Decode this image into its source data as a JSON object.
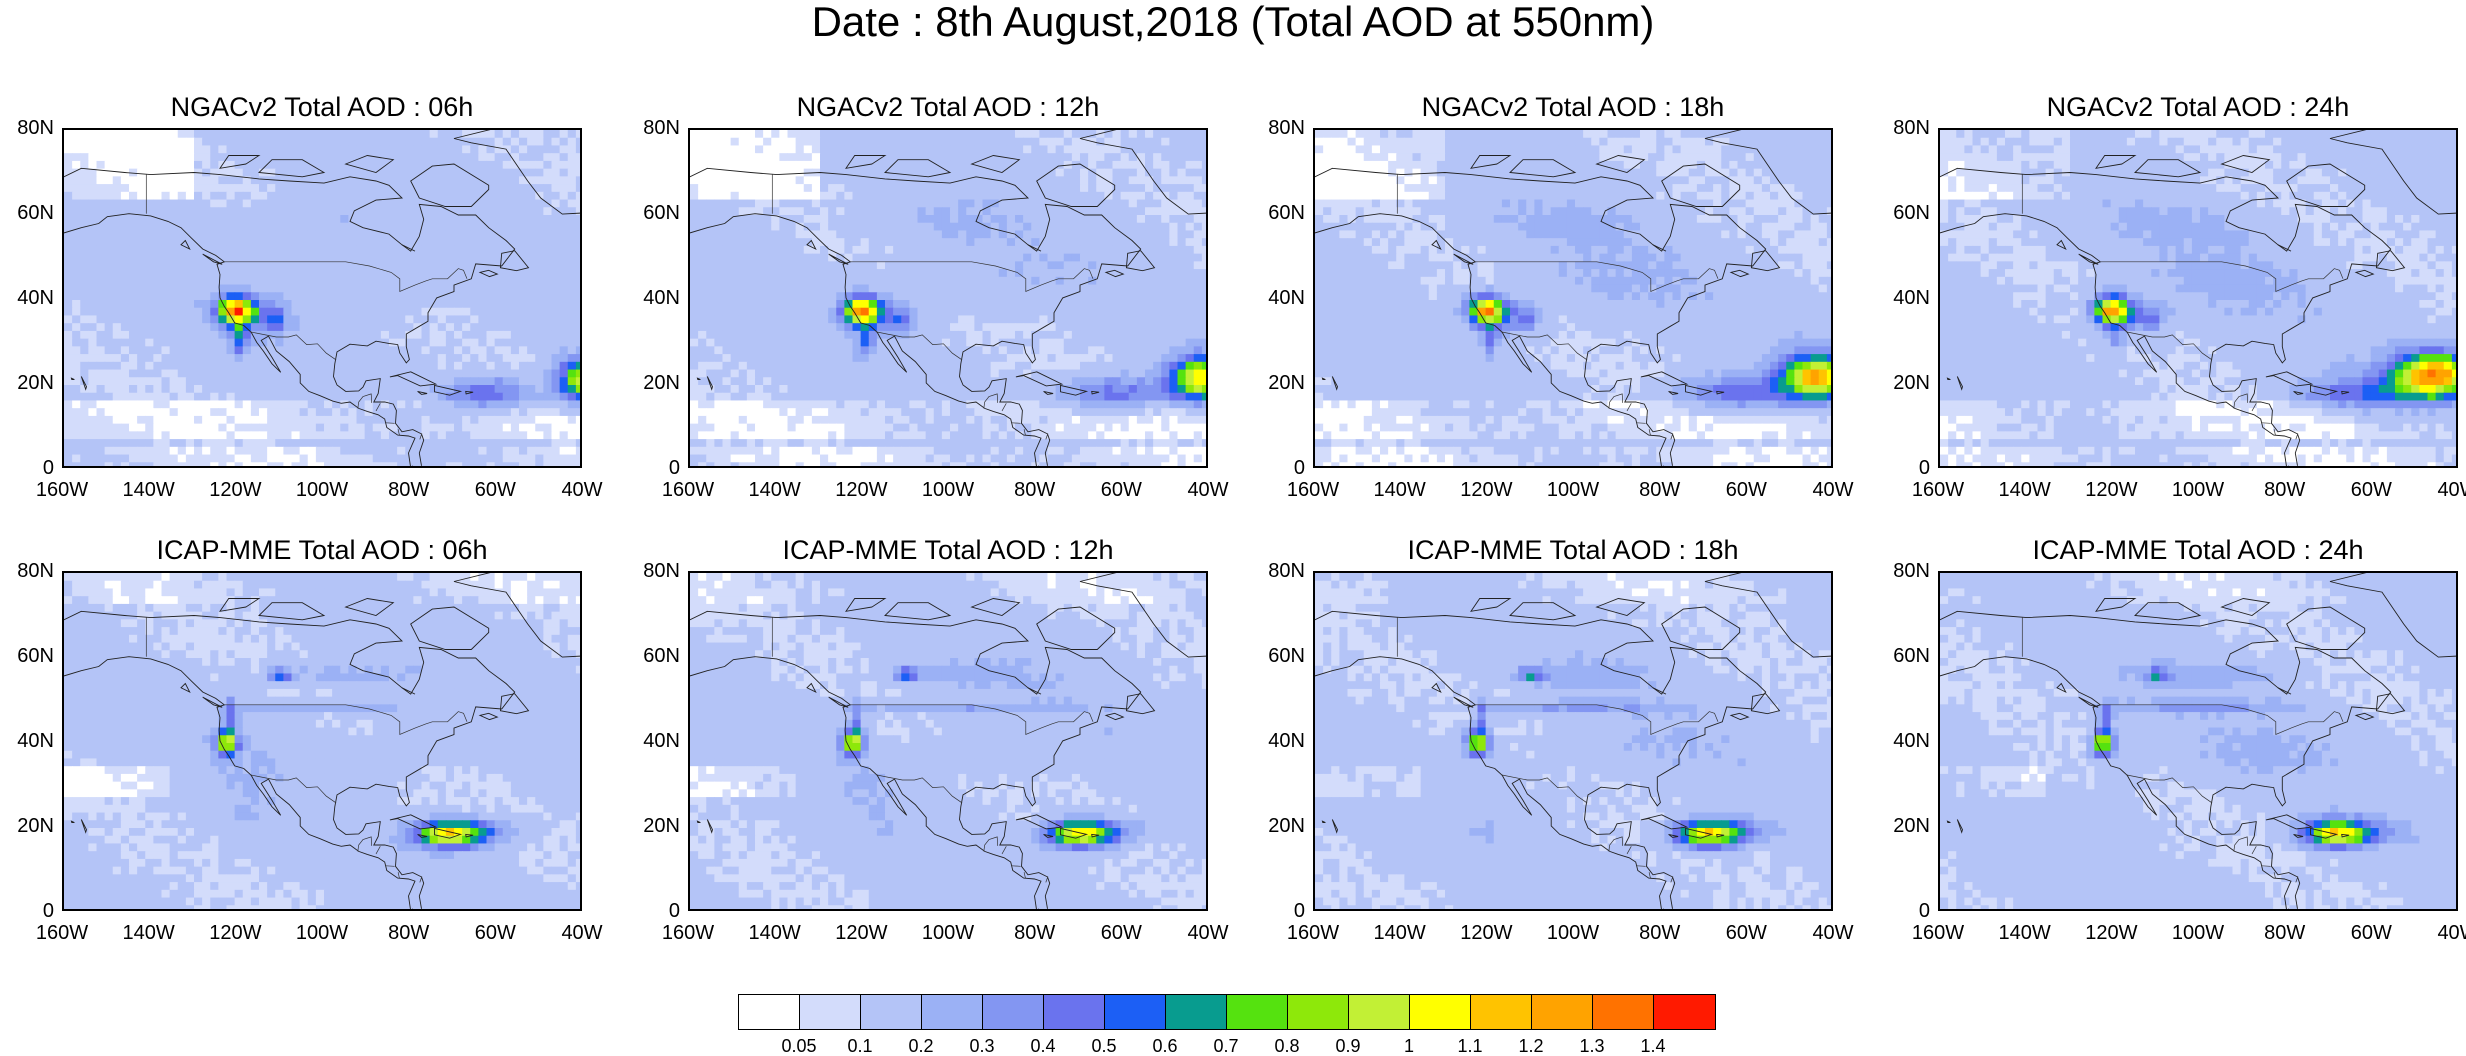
{
  "title": "Date : 8th August,2018 (Total AOD at 550nm)",
  "axes": {
    "y_ticks": [
      "80N",
      "60N",
      "40N",
      "20N",
      "0"
    ],
    "x_ticks": [
      "160W",
      "140W",
      "120W",
      "100W",
      "80W",
      "60W",
      "40W"
    ],
    "lon_range": [
      -160,
      -40
    ],
    "lat_range": [
      0,
      80
    ]
  },
  "panels": [
    {
      "title": "NGACv2 Total AOD : 06h",
      "model": "NGACv2",
      "hour": "06h"
    },
    {
      "title": "NGACv2 Total AOD : 12h",
      "model": "NGACv2",
      "hour": "12h"
    },
    {
      "title": "NGACv2 Total AOD : 18h",
      "model": "NGACv2",
      "hour": "18h"
    },
    {
      "title": "NGACv2 Total AOD : 24h",
      "model": "NGACv2",
      "hour": "24h"
    },
    {
      "title": "ICAP-MME Total AOD : 06h",
      "model": "ICAP-MME",
      "hour": "06h"
    },
    {
      "title": "ICAP-MME Total AOD : 12h",
      "model": "ICAP-MME",
      "hour": "12h"
    },
    {
      "title": "ICAP-MME Total AOD : 18h",
      "model": "ICAP-MME",
      "hour": "18h"
    },
    {
      "title": "ICAP-MME Total AOD : 24h",
      "model": "ICAP-MME",
      "hour": "24h"
    }
  ],
  "colorbar": {
    "labels": [
      "0.05",
      "0.1",
      "0.2",
      "0.3",
      "0.4",
      "0.5",
      "0.6",
      "0.7",
      "0.8",
      "0.9",
      "1",
      "1.1",
      "1.2",
      "1.3",
      "1.4"
    ],
    "colors": [
      "#ffffff",
      "#d3dcfb",
      "#b4c4f7",
      "#9bb1f5",
      "#8396f2",
      "#6a73ee",
      "#1c5ff5",
      "#089c8f",
      "#55e20f",
      "#8ee80a",
      "#c2f035",
      "#ffff00",
      "#ffc300",
      "#ffa300",
      "#ff7200",
      "#ff1a00"
    ]
  }
}
